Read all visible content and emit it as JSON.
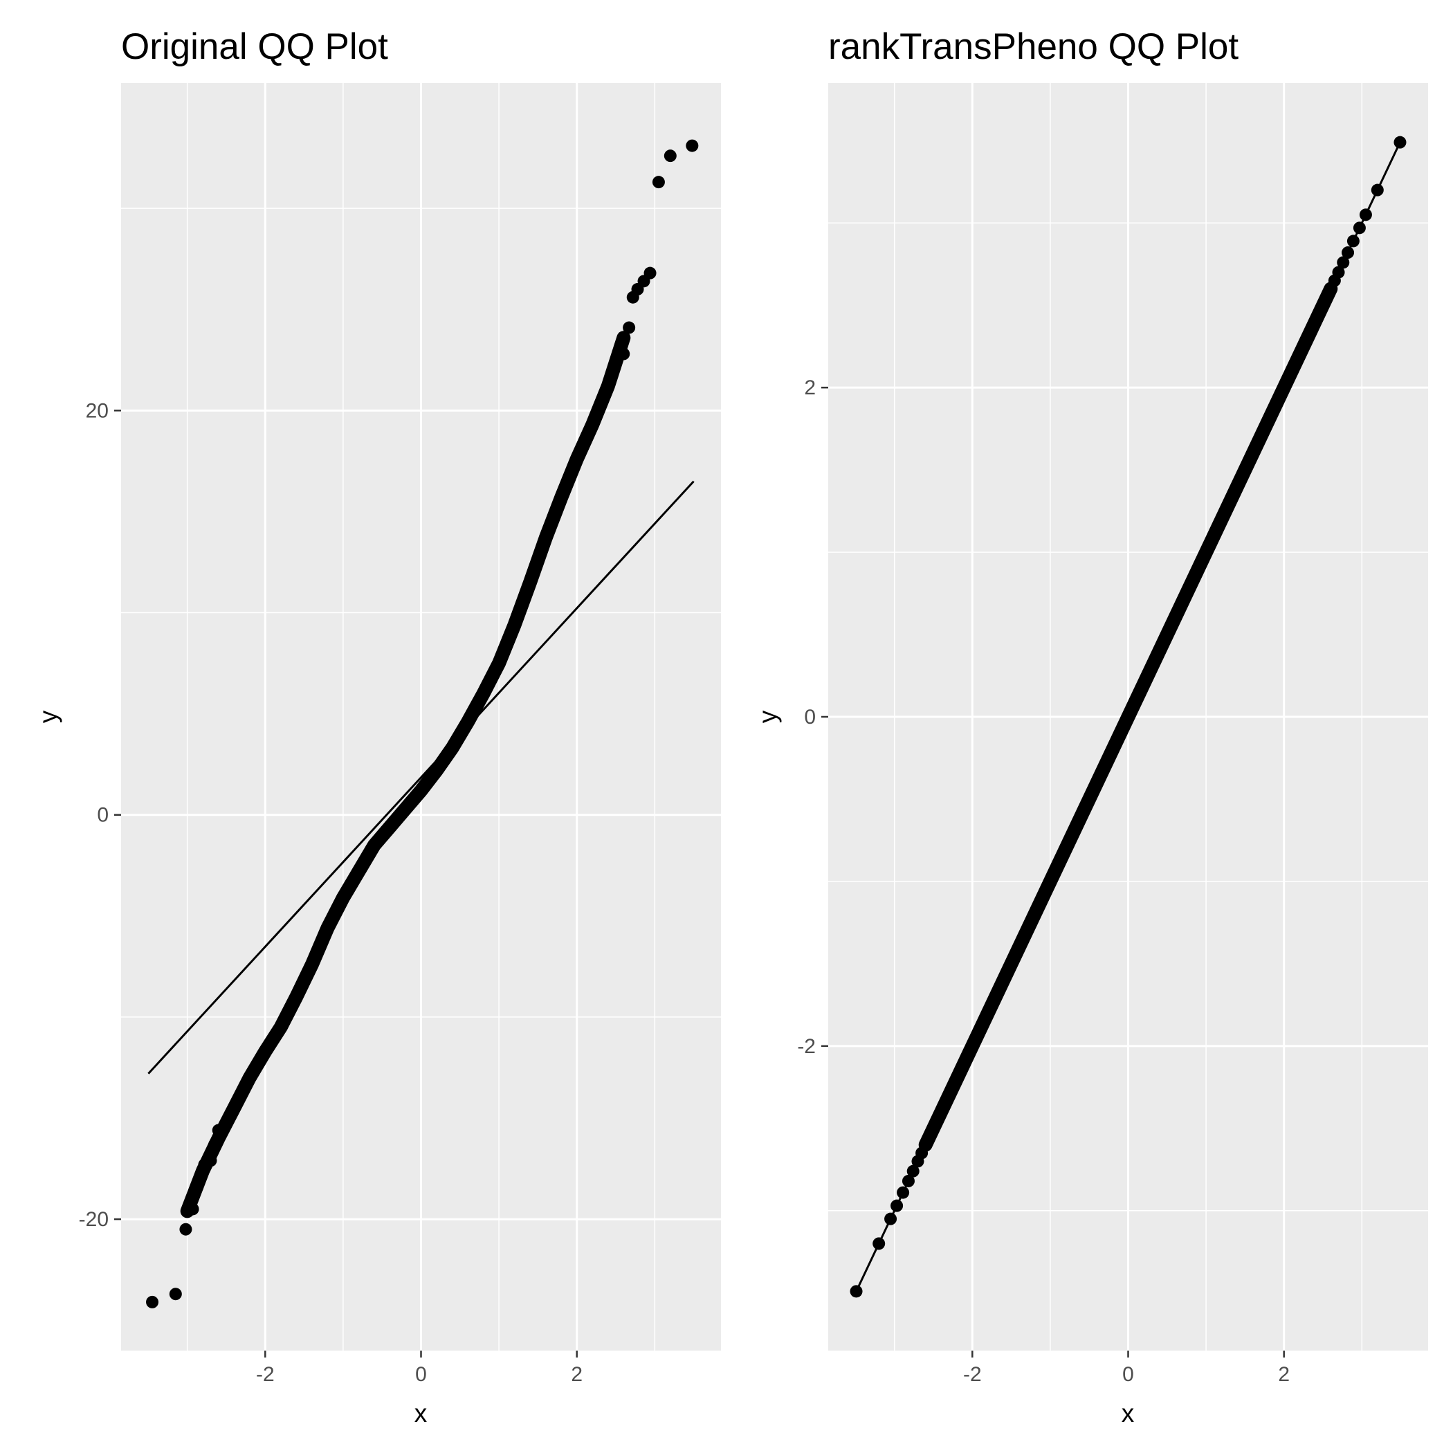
{
  "chart_data": [
    {
      "type": "scatter",
      "title": "Original QQ Plot",
      "xlabel": "x",
      "ylabel": "y",
      "xlim": [
        -3.85,
        3.85
      ],
      "ylim": [
        -26.5,
        36.2
      ],
      "x_ticks": [
        -2,
        0,
        2
      ],
      "x_tick_labels": [
        "-2",
        "0",
        "2"
      ],
      "y_ticks": [
        -20,
        0,
        20
      ],
      "y_tick_labels": [
        "-20",
        "0",
        "20"
      ],
      "grid": true,
      "background": "#ebebeb",
      "point_color": "#000000",
      "reference_line": {
        "x": [
          -3.5,
          3.5
        ],
        "y": [
          -12.8,
          16.5
        ]
      },
      "quantile_curve": {
        "x": [
          -3.0,
          -2.8,
          -2.6,
          -2.4,
          -2.2,
          -2.0,
          -1.8,
          -1.6,
          -1.4,
          -1.2,
          -1.0,
          -0.8,
          -0.6,
          -0.4,
          -0.2,
          0.0,
          0.2,
          0.4,
          0.6,
          0.8,
          1.0,
          1.2,
          1.4,
          1.6,
          1.8,
          2.0,
          2.2,
          2.4,
          2.6
        ],
        "y": [
          -19.6,
          -17.6,
          -16.0,
          -14.5,
          -13.0,
          -11.7,
          -10.5,
          -9.0,
          -7.4,
          -5.6,
          -4.1,
          -2.8,
          -1.5,
          -0.6,
          0.3,
          1.2,
          2.2,
          3.3,
          4.6,
          6.0,
          7.5,
          9.4,
          11.5,
          13.7,
          15.7,
          17.6,
          19.3,
          21.2,
          23.6
        ]
      },
      "tail_points": [
        {
          "x": -3.45,
          "y": -24.1
        },
        {
          "x": -3.15,
          "y": -23.7
        },
        {
          "x": -3.02,
          "y": -20.5
        },
        {
          "x": -2.93,
          "y": -19.5
        },
        {
          "x": -2.87,
          "y": -18.4
        },
        {
          "x": -2.78,
          "y": -17.3
        },
        {
          "x": -2.7,
          "y": -17.1
        },
        {
          "x": -2.65,
          "y": -16.3
        },
        {
          "x": -2.6,
          "y": -15.6
        },
        {
          "x": 2.6,
          "y": 22.8
        },
        {
          "x": 2.67,
          "y": 24.1
        },
        {
          "x": 2.72,
          "y": 25.6
        },
        {
          "x": 2.78,
          "y": 26.0
        },
        {
          "x": 2.86,
          "y": 26.4
        },
        {
          "x": 2.94,
          "y": 26.8
        },
        {
          "x": 3.05,
          "y": 31.3
        },
        {
          "x": 3.2,
          "y": 32.6
        },
        {
          "x": 3.48,
          "y": 33.1
        }
      ]
    },
    {
      "type": "scatter",
      "title": "rankTransPheno QQ Plot",
      "xlabel": "x",
      "ylabel": "y",
      "xlim": [
        -3.85,
        3.85
      ],
      "ylim": [
        -3.85,
        3.85
      ],
      "x_ticks": [
        -2,
        0,
        2
      ],
      "x_tick_labels": [
        "-2",
        "0",
        "2"
      ],
      "y_ticks": [
        -2,
        0,
        2
      ],
      "y_tick_labels": [
        "-2",
        "0",
        "2"
      ],
      "grid": true,
      "background": "#ebebeb",
      "point_color": "#000000",
      "reference_line": {
        "x": [
          -3.5,
          3.5
        ],
        "y": [
          -3.5,
          3.5
        ]
      },
      "quantile_curve": {
        "x": [
          -2.6,
          2.6
        ],
        "y": [
          -2.6,
          2.6
        ]
      },
      "tail_points": [
        {
          "x": -3.49,
          "y": -3.49
        },
        {
          "x": -3.2,
          "y": -3.2
        },
        {
          "x": -3.05,
          "y": -3.05
        },
        {
          "x": -2.97,
          "y": -2.97
        },
        {
          "x": -2.89,
          "y": -2.89
        },
        {
          "x": -2.82,
          "y": -2.82
        },
        {
          "x": -2.76,
          "y": -2.76
        },
        {
          "x": -2.7,
          "y": -2.7
        },
        {
          "x": -2.65,
          "y": -2.65
        },
        {
          "x": 2.65,
          "y": 2.65
        },
        {
          "x": 2.7,
          "y": 2.7
        },
        {
          "x": 2.76,
          "y": 2.76
        },
        {
          "x": 2.82,
          "y": 2.82
        },
        {
          "x": 2.89,
          "y": 2.89
        },
        {
          "x": 2.97,
          "y": 2.97
        },
        {
          "x": 3.05,
          "y": 3.05
        },
        {
          "x": 3.2,
          "y": 3.2
        },
        {
          "x": 3.49,
          "y": 3.49
        }
      ]
    }
  ]
}
